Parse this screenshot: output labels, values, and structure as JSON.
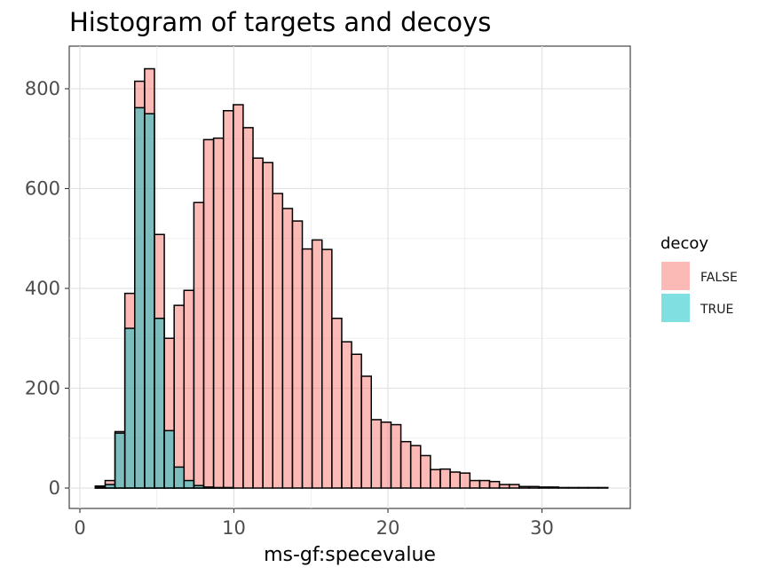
{
  "chart_data": {
    "type": "bar",
    "subtype": "overlaid-histogram",
    "title": "Histogram of targets and decoys",
    "xlabel": "ms-gf:specevalue",
    "ylabel": "",
    "xlim": [
      0,
      35
    ],
    "ylim": [
      0,
      850
    ],
    "x_ticks": [
      0,
      10,
      20,
      30
    ],
    "y_ticks": [
      0,
      200,
      400,
      600,
      800
    ],
    "x_tick_labels": [
      "0",
      "10",
      "20",
      "30"
    ],
    "y_tick_labels": [
      "0",
      "200",
      "400",
      "600",
      "800"
    ],
    "grid": true,
    "legend": {
      "title": "decoy",
      "position": "right"
    },
    "bin_width": 0.64,
    "bins_start": [
      1.0,
      1.64,
      2.28,
      2.92,
      3.56,
      4.2,
      4.84,
      5.48,
      6.12,
      6.76,
      7.4,
      8.04,
      8.68,
      9.32,
      9.96,
      10.6,
      11.24,
      11.88,
      12.52,
      13.16,
      13.8,
      14.44,
      15.08,
      15.72,
      16.36,
      17.0,
      17.64,
      18.28,
      18.92,
      19.56,
      20.2,
      20.84,
      21.48,
      22.12,
      22.76,
      23.4,
      24.04,
      24.68,
      25.32,
      25.96,
      26.6,
      27.24,
      27.88,
      28.52,
      29.16,
      29.8,
      30.44,
      31.08,
      31.72,
      32.36,
      33.0,
      33.64
    ],
    "series": [
      {
        "name": "FALSE",
        "color": "#F8766D",
        "values": [
          4,
          15,
          113,
          390,
          815,
          840,
          508,
          300,
          366,
          396,
          572,
          698,
          701,
          756,
          768,
          722,
          661,
          652,
          590,
          560,
          535,
          479,
          497,
          478,
          340,
          293,
          268,
          224,
          137,
          132,
          127,
          93,
          85,
          65,
          37,
          38,
          32,
          30,
          15,
          15,
          13,
          7,
          7,
          3,
          3,
          2,
          2,
          1,
          1,
          1,
          1,
          1
        ]
      },
      {
        "name": "TRUE",
        "color": "#00BFC4",
        "values": [
          2,
          7,
          110,
          320,
          762,
          750,
          340,
          115,
          42,
          15,
          5,
          2,
          1,
          1,
          0,
          0,
          0,
          0,
          0,
          0,
          0,
          0,
          0,
          0,
          0,
          0,
          0,
          0,
          0,
          0,
          0,
          0,
          0,
          0,
          0,
          0,
          0,
          0,
          0,
          0,
          0,
          0,
          0,
          0,
          0,
          0,
          0,
          0,
          0,
          0,
          0,
          0
        ]
      }
    ]
  }
}
